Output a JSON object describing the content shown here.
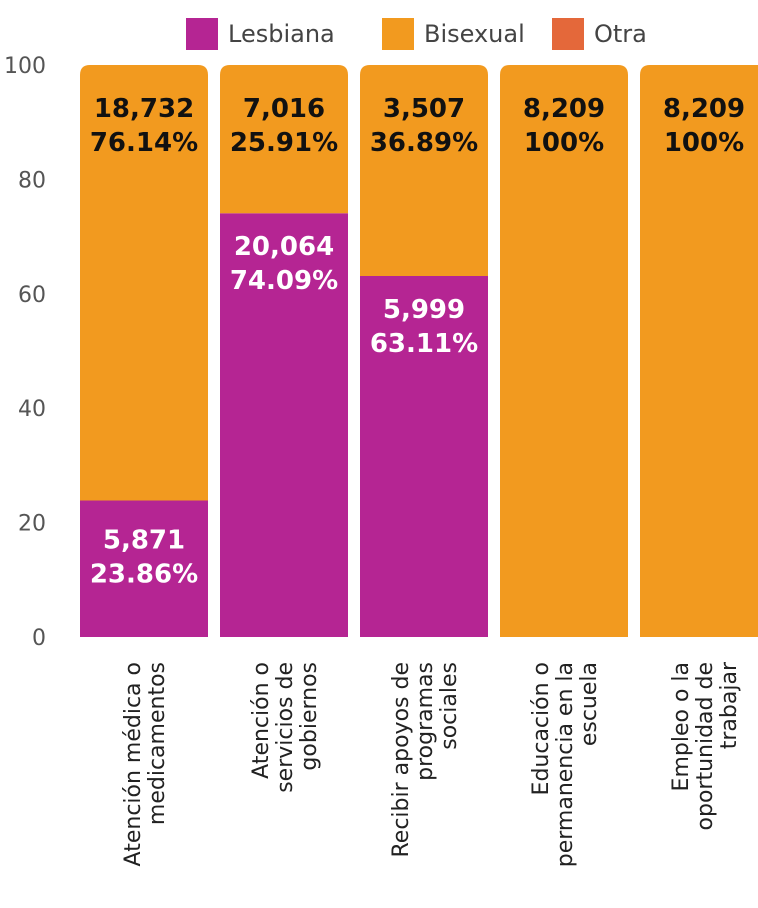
{
  "chart_data": {
    "type": "bar",
    "stacked": true,
    "legend": {
      "placement": "top",
      "entries": [
        {
          "name": "Lesbiana",
          "color": "#B52593"
        },
        {
          "name": "Bisexual",
          "color": "#F29A1F"
        },
        {
          "name": "Otra",
          "color": "#E4683A"
        }
      ]
    },
    "yticks": [
      "0",
      "20",
      "40",
      "60",
      "80",
      "100"
    ],
    "ylim": [
      0,
      100
    ],
    "categories": [
      [
        "Atención médica o",
        "medicamentos"
      ],
      [
        "Atención o",
        "servicios de",
        "gobiernos"
      ],
      [
        "Recibir apoyos de",
        "programas",
        "sociales"
      ],
      [
        "Educación o",
        "permanencia en la",
        "escuela"
      ],
      [
        "Empleo o la",
        "oportunidad de",
        "trabajar"
      ]
    ],
    "series": [
      {
        "name": "Lesbiana",
        "values": [
          23.86,
          74.09,
          63.11,
          0,
          0
        ],
        "counts": [
          "5,871",
          "20,064",
          "5,999",
          "",
          ""
        ],
        "percent_labels": [
          "23.86%",
          "74.09%",
          "63.11%",
          "",
          ""
        ]
      },
      {
        "name": "Bisexual",
        "values": [
          76.14,
          25.91,
          36.89,
          100,
          100
        ],
        "counts": [
          "18,732",
          "7,016",
          "3,507",
          "8,209",
          "8,209"
        ],
        "percent_labels": [
          "76.14%",
          "25.91%",
          "36.89%",
          "100%",
          "100%"
        ]
      },
      {
        "name": "Otra",
        "values": [
          0,
          0,
          0,
          0,
          0
        ],
        "counts": [
          "",
          "",
          "",
          "",
          ""
        ],
        "percent_labels": [
          "",
          "",
          "",
          "",
          ""
        ]
      }
    ]
  }
}
